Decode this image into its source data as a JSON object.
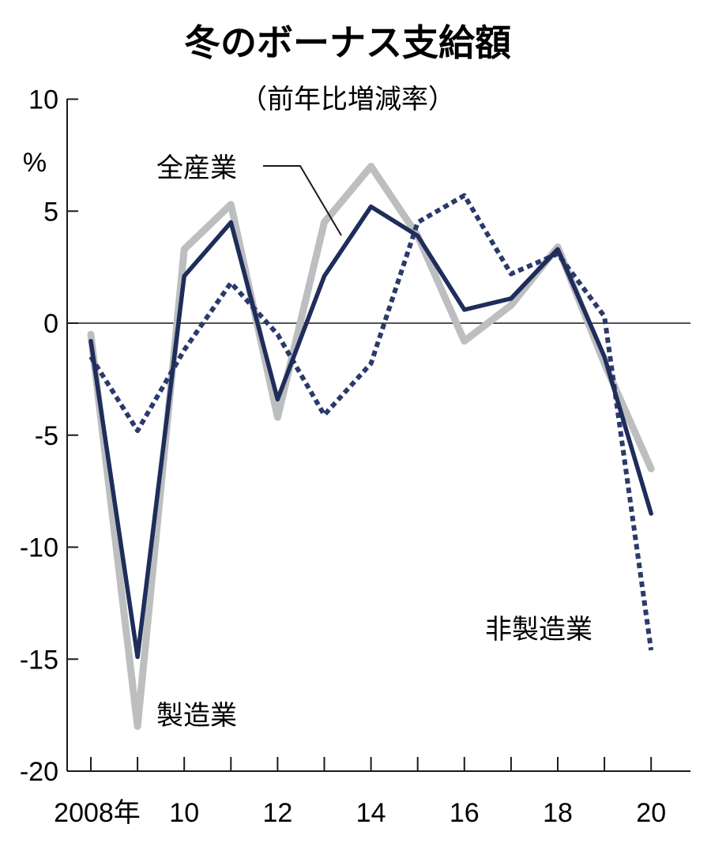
{
  "chart_data": {
    "type": "line",
    "title": "冬のボーナス支給額",
    "subtitle": "（前年比増減率）",
    "ylabel": "%",
    "xlabel": "",
    "ylim": [
      -20,
      10
    ],
    "xlim": [
      2008,
      2020
    ],
    "yticks": [
      10,
      5,
      0,
      -5,
      -10,
      -15,
      -20
    ],
    "ytick_labels": [
      "10",
      "5",
      "0",
      "-5",
      "-10",
      "-15",
      "-20"
    ],
    "xtick_labels": [
      {
        "x": 2008,
        "label": "2008年"
      },
      {
        "x": 2010,
        "label": "10"
      },
      {
        "x": 2012,
        "label": "12"
      },
      {
        "x": 2014,
        "label": "14"
      },
      {
        "x": 2016,
        "label": "16"
      },
      {
        "x": 2018,
        "label": "18"
      },
      {
        "x": 2020,
        "label": "20"
      }
    ],
    "x": [
      2008,
      2009,
      2010,
      2011,
      2012,
      2013,
      2014,
      2015,
      2016,
      2017,
      2018,
      2019,
      2020
    ],
    "series": [
      {
        "name": "製造業",
        "color": "#bcbec0",
        "style": "solid",
        "values": [
          -0.5,
          -18.0,
          3.3,
          5.3,
          -4.2,
          4.5,
          7.0,
          3.9,
          -0.8,
          0.8,
          3.4,
          -1.8,
          -6.5
        ]
      },
      {
        "name": "非製造業",
        "color": "#2a3a6b",
        "style": "dotted",
        "values": [
          -1.5,
          -4.8,
          -1.2,
          1.8,
          -0.5,
          -4.1,
          -1.8,
          4.5,
          5.7,
          2.2,
          3.1,
          0.3,
          -14.6
        ]
      },
      {
        "name": "全産業",
        "color": "#1f2d5a",
        "style": "solid",
        "values": [
          -0.8,
          -14.9,
          2.1,
          4.5,
          -3.4,
          2.1,
          5.2,
          3.9,
          0.6,
          1.1,
          3.3,
          -1.5,
          -8.5
        ]
      }
    ],
    "annotations": [
      {
        "text": "全産業",
        "series": "全産業"
      },
      {
        "text": "製造業",
        "series": "製造業"
      },
      {
        "text": "非製造業",
        "series": "非製造業"
      }
    ],
    "grid": false,
    "legend": "inline labels"
  }
}
